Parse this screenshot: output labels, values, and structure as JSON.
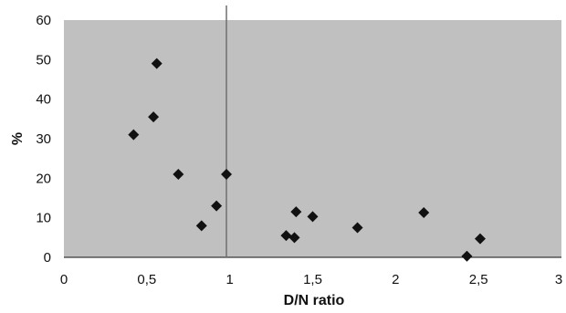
{
  "chart_data": {
    "type": "scatter",
    "title": "",
    "xlabel": "D/N ratio",
    "ylabel": "%",
    "xlim": [
      0,
      3
    ],
    "ylim": [
      0,
      60
    ],
    "x_ticks": [
      0,
      0.5,
      1,
      1.5,
      2,
      2.5,
      3
    ],
    "x_tick_labels": [
      "0",
      "0,5",
      "1",
      "1,5",
      "2",
      "2,5",
      "3"
    ],
    "y_ticks": [
      0,
      10,
      20,
      30,
      40,
      50,
      60
    ],
    "y_tick_labels": [
      "0",
      "10",
      "20",
      "30",
      "40",
      "50",
      "60"
    ],
    "grid": false,
    "reference_line_x": 0.98,
    "colors": {
      "plot_background": "#c0c0c0",
      "marker": "#111111",
      "reference_line": "#707070"
    },
    "marker": "diamond",
    "series": [
      {
        "points": [
          {
            "x": 0.42,
            "y": 31
          },
          {
            "x": 0.54,
            "y": 35.5
          },
          {
            "x": 0.56,
            "y": 49
          },
          {
            "x": 0.69,
            "y": 21
          },
          {
            "x": 0.83,
            "y": 8
          },
          {
            "x": 0.92,
            "y": 13
          },
          {
            "x": 0.98,
            "y": 21
          },
          {
            "x": 1.34,
            "y": 5.5
          },
          {
            "x": 1.39,
            "y": 5
          },
          {
            "x": 1.4,
            "y": 11.5
          },
          {
            "x": 1.5,
            "y": 10.3
          },
          {
            "x": 1.77,
            "y": 7.5
          },
          {
            "x": 2.17,
            "y": 11.3
          },
          {
            "x": 2.43,
            "y": 0.3
          },
          {
            "x": 2.51,
            "y": 4.7
          }
        ]
      }
    ]
  }
}
